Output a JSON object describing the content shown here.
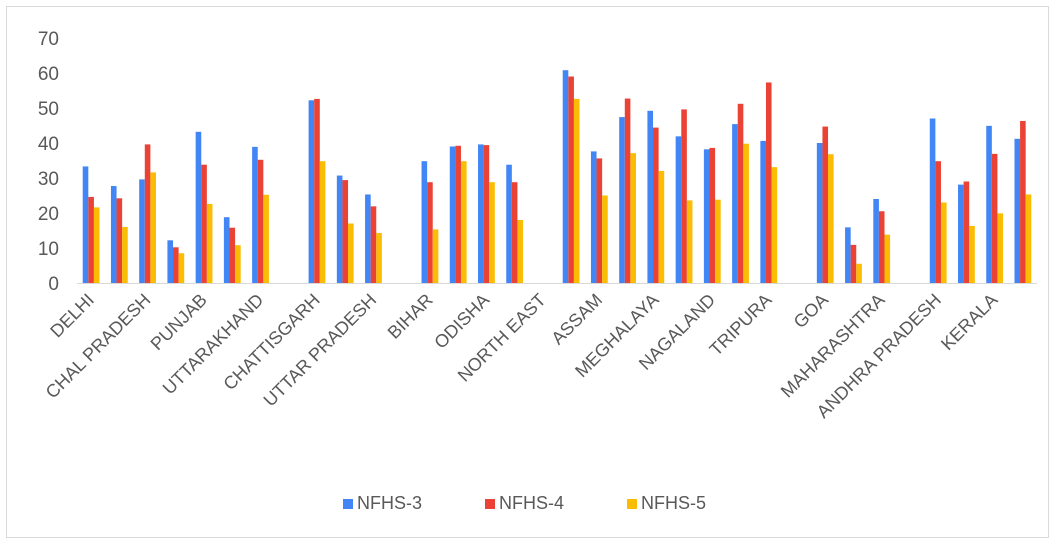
{
  "chart_data": {
    "type": "bar",
    "title": "",
    "xlabel": "",
    "ylabel": "",
    "ylim": [
      0,
      70
    ],
    "yticks": [
      0,
      10,
      20,
      30,
      40,
      50,
      60,
      70
    ],
    "grid": false,
    "legend_position": "bottom",
    "categories": [
      "DELHI",
      "",
      "CHAL PRADESH",
      "",
      "PUNJAB",
      "",
      "UTTARAKHAND",
      "",
      "CHATTISGARH",
      "",
      "UTTAR PRADESH",
      "",
      "BIHAR",
      "",
      "ODISHA",
      "",
      "NORTH EAST",
      "",
      "ASSAM",
      "",
      "MEGHALAYA",
      "",
      "NAGALAND",
      "",
      "TRIPURA",
      "",
      "GOA",
      "",
      "MAHARASHTRA",
      "",
      "ANDHRA PRADESH",
      "",
      "KERALA",
      ""
    ],
    "series": [
      {
        "name": "NFHS-3",
        "color": "#4285f4",
        "values": [
          33.3,
          27.7,
          29.6,
          12.2,
          43.2,
          18.8,
          38.9,
          null,
          52.2,
          30.7,
          25.3,
          null,
          34.8,
          39.0,
          39.6,
          33.8,
          null,
          60.8,
          37.6,
          47.4,
          49.2,
          41.9,
          38.2,
          45.4,
          40.6,
          null,
          40.0,
          15.9,
          24.0,
          null,
          47.0,
          28.1,
          44.9,
          41.2
        ]
      },
      {
        "name": "NFHS-4",
        "color": "#ea4335",
        "values": [
          24.6,
          24.2,
          39.6,
          10.2,
          33.8,
          15.8,
          35.2,
          null,
          52.6,
          29.4,
          21.9,
          null,
          28.8,
          39.2,
          39.4,
          28.8,
          null,
          59.0,
          35.6,
          52.7,
          44.4,
          49.6,
          38.6,
          51.2,
          57.3,
          null,
          44.7,
          10.9,
          20.5,
          null,
          34.8,
          29.0,
          36.9,
          46.3
        ]
      },
      {
        "name": "NFHS-5",
        "color": "#fbbc04",
        "values": [
          21.6,
          16.0,
          31.6,
          8.5,
          22.6,
          10.8,
          25.2,
          null,
          34.8,
          17.0,
          14.3,
          null,
          15.3,
          34.8,
          28.8,
          18.0,
          null,
          52.6,
          25.0,
          37.1,
          32.0,
          23.6,
          23.8,
          39.8,
          33.1,
          null,
          36.8,
          5.5,
          13.8,
          null,
          23.0,
          16.3,
          19.9,
          25.3
        ]
      }
    ]
  }
}
